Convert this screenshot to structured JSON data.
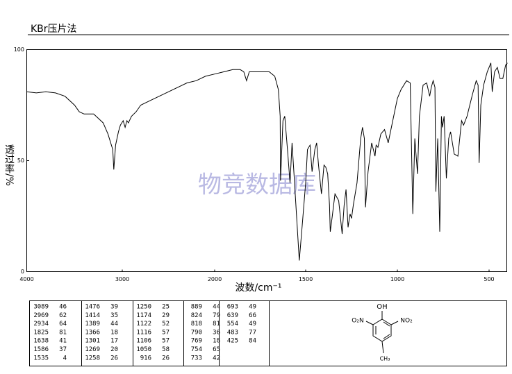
{
  "header": {
    "title": "KBr压片法"
  },
  "watermark": "物竞数据库",
  "chart_data": {
    "type": "line",
    "xlabel": "波数/cm⁻¹",
    "ylabel": "透过率/%",
    "x": [
      4000,
      3900,
      3800,
      3700,
      3600,
      3500,
      3450,
      3400,
      3300,
      3200,
      3150,
      3100,
      3089,
      3070,
      3040,
      3020,
      2990,
      2969,
      2950,
      2934,
      2900,
      2850,
      2800,
      2700,
      2600,
      2500,
      2400,
      2300,
      2200,
      2100,
      2000,
      1950,
      1900,
      1860,
      1840,
      1825,
      1810,
      1780,
      1700,
      1670,
      1650,
      1640,
      1638,
      1625,
      1615,
      1600,
      1586,
      1575,
      1565,
      1550,
      1535,
      1520,
      1500,
      1490,
      1476,
      1465,
      1450,
      1440,
      1430,
      1414,
      1400,
      1390,
      1380,
      1370,
      1366,
      1355,
      1340,
      1320,
      1301,
      1290,
      1280,
      1269,
      1258,
      1250,
      1240,
      1220,
      1200,
      1190,
      1180,
      1174,
      1160,
      1140,
      1122,
      1116,
      1106,
      1090,
      1070,
      1050,
      1040,
      1020,
      1000,
      980,
      950,
      930,
      916,
      905,
      890,
      880,
      860,
      840,
      824,
      815,
      805,
      795,
      790,
      780,
      769,
      760,
      754,
      745,
      733,
      720,
      710,
      690,
      670,
      650,
      639,
      620,
      590,
      570,
      560,
      554,
      545,
      530,
      510,
      490,
      483,
      470,
      455,
      440,
      425,
      410,
      400
    ],
    "values": [
      81,
      80.5,
      81,
      80.5,
      79,
      75,
      72,
      71,
      71,
      67,
      62,
      55,
      46,
      57,
      63,
      66,
      68,
      65,
      68,
      67,
      70,
      72,
      75,
      77,
      79,
      81,
      83,
      85,
      86,
      88,
      89,
      90,
      91,
      91,
      90,
      86,
      90,
      90,
      90,
      88,
      82,
      70,
      41,
      68,
      70,
      55,
      40,
      58,
      45,
      25,
      5,
      20,
      40,
      55,
      57,
      45,
      55,
      58,
      48,
      35,
      48,
      47,
      44,
      30,
      18,
      25,
      35,
      32,
      17,
      30,
      37,
      20,
      26,
      24,
      30,
      40,
      60,
      65,
      60,
      29,
      45,
      58,
      52,
      57,
      56,
      62,
      64,
      58,
      62,
      70,
      78,
      82,
      86,
      85,
      26,
      60,
      44,
      70,
      84,
      85,
      79,
      83,
      86,
      83,
      36,
      60,
      18,
      70,
      65,
      70,
      42,
      60,
      63,
      53,
      52,
      68,
      66,
      70,
      80,
      86,
      84,
      49,
      75,
      84,
      90,
      94,
      81,
      90,
      92,
      87,
      87,
      93,
      94
    ],
    "color": "#000000",
    "xlim": [
      4000,
      400
    ],
    "ylim": [
      0,
      100
    ],
    "xticks": [
      4000,
      3000,
      2000,
      1500,
      1000,
      500
    ],
    "yticks": [
      0,
      50,
      100
    ]
  },
  "peak_table": [
    [
      [
        3089,
        46
      ],
      [
        2969,
        62
      ],
      [
        2934,
        64
      ],
      [
        1825,
        81
      ],
      [
        1638,
        41
      ],
      [
        1586,
        37
      ],
      [
        1535,
        4
      ]
    ],
    [
      [
        1476,
        39
      ],
      [
        1414,
        35
      ],
      [
        1389,
        44
      ],
      [
        1366,
        18
      ],
      [
        1301,
        17
      ],
      [
        1269,
        20
      ],
      [
        1258,
        26
      ]
    ],
    [
      [
        1250,
        25
      ],
      [
        1174,
        29
      ],
      [
        1122,
        52
      ],
      [
        1116,
        57
      ],
      [
        1106,
        57
      ],
      [
        1050,
        58
      ],
      [
        916,
        26
      ]
    ],
    [
      [
        889,
        44
      ],
      [
        824,
        79
      ],
      [
        818,
        81
      ],
      [
        790,
        36
      ],
      [
        769,
        18
      ],
      [
        754,
        65
      ],
      [
        733,
        42
      ]
    ],
    [
      [
        693,
        49
      ],
      [
        639,
        66
      ],
      [
        554,
        49
      ],
      [
        483,
        77
      ],
      [
        425,
        84
      ]
    ]
  ],
  "structure": {
    "top": "OH",
    "left": "O₂N",
    "right": "NO₂",
    "bottom": "CH₃"
  }
}
